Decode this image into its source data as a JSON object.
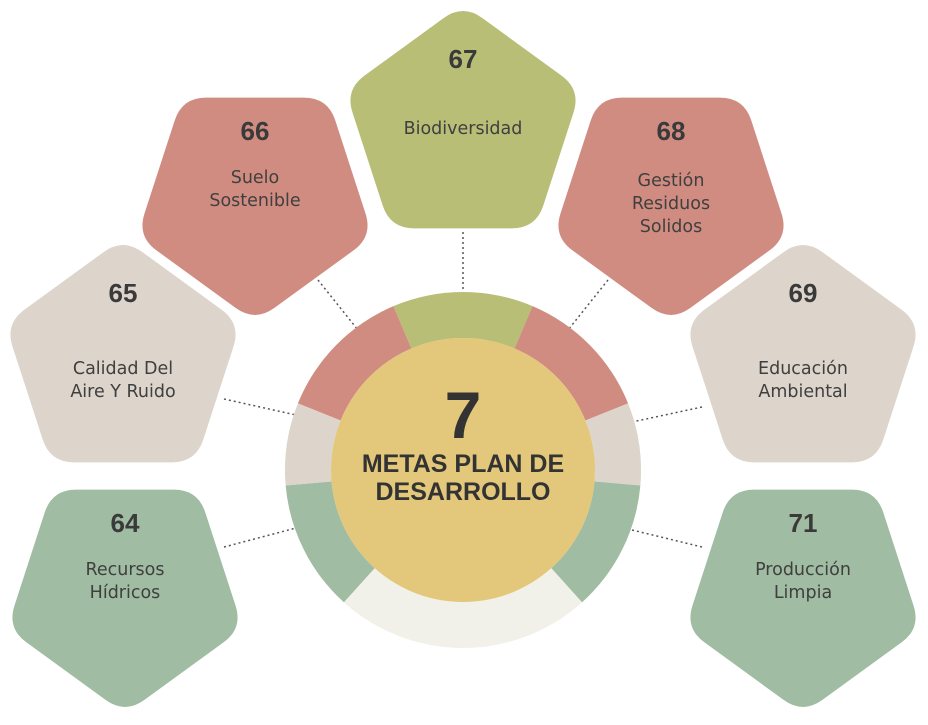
{
  "center": {
    "number": "7",
    "title_line1": "METAS PLAN DE",
    "title_line2": "DESARROLLO",
    "fill": "#E3C77A"
  },
  "ring": {
    "base_color": "#F1F1E9",
    "segments": [
      {
        "name": "suelo-sostenible",
        "color": "#D08C80"
      },
      {
        "name": "biodiversidad",
        "color": "#B9BE77"
      },
      {
        "name": "gestion-residuos",
        "color": "#D08C80"
      },
      {
        "name": "educacion-ambiental",
        "color": "#DDD4CB"
      },
      {
        "name": "produccion-limpia",
        "color": "#A0BCA2"
      },
      {
        "name": "recursos-hidricos",
        "color": "#A0BCA2"
      },
      {
        "name": "calidad-aire",
        "color": "#DDD4CB"
      }
    ]
  },
  "goals": [
    {
      "id": "recursos-hidricos",
      "number": "64",
      "label": [
        "Recursos",
        "Hídricos"
      ],
      "color": "#A0BCA2"
    },
    {
      "id": "calidad-aire",
      "number": "65",
      "label": [
        "Calidad Del",
        "Aire Y Ruido"
      ],
      "color": "#DDD4CB"
    },
    {
      "id": "suelo-sostenible",
      "number": "66",
      "label": [
        "Suelo",
        "Sostenible"
      ],
      "color": "#D08C80"
    },
    {
      "id": "biodiversidad",
      "number": "67",
      "label": [
        "Biodiversidad"
      ],
      "color": "#B9BE77"
    },
    {
      "id": "gestion-residuos",
      "number": "68",
      "label": [
        "Gestión",
        "Residuos",
        "Solidos"
      ],
      "color": "#D08C80"
    },
    {
      "id": "educacion-ambiental",
      "number": "69",
      "label": [
        "Educación",
        "Ambiental"
      ],
      "color": "#DDD4CB"
    },
    {
      "id": "produccion-limpia",
      "number": "71",
      "label": [
        "Producción",
        "Limpia"
      ],
      "color": "#A0BCA2"
    }
  ]
}
